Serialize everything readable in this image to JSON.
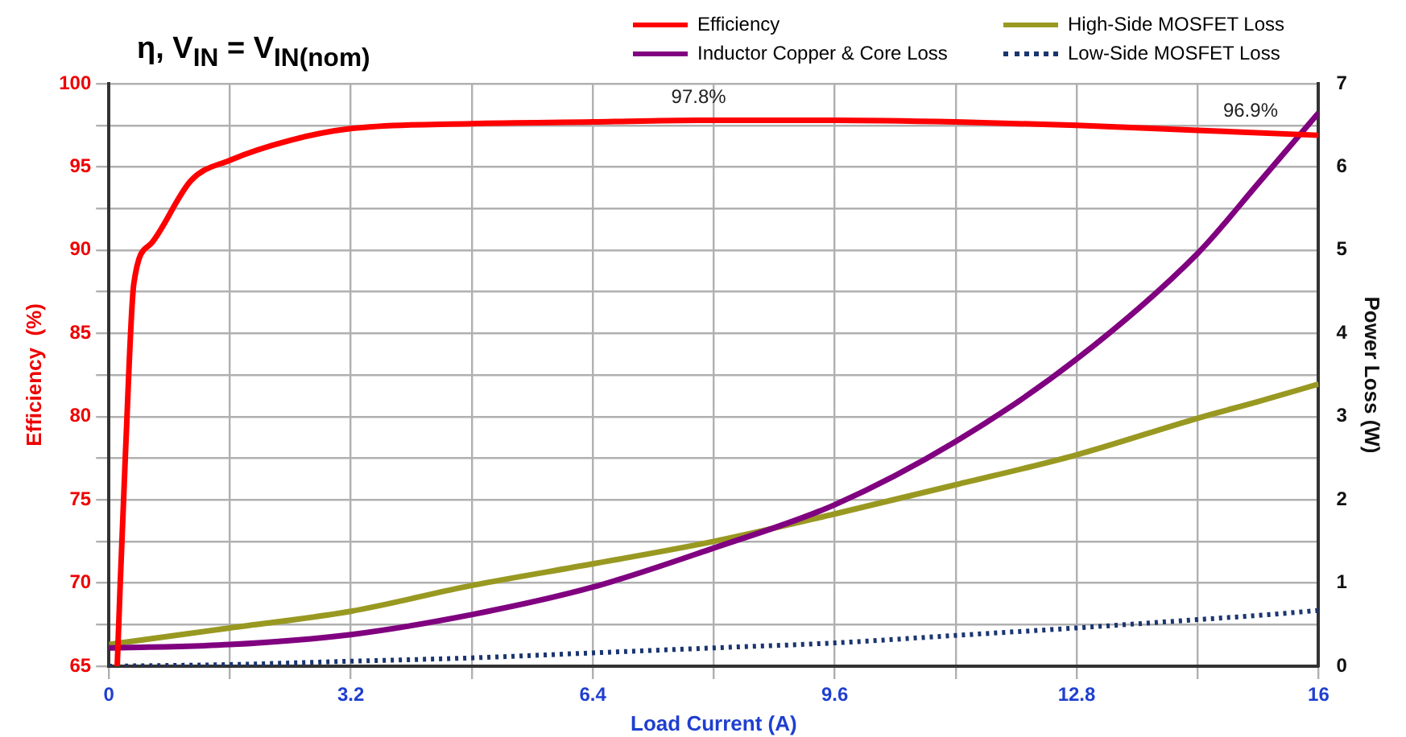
{
  "chart_data": {
    "type": "line",
    "title": "η, V$_{IN}$ = V$_{IN(nom)}$",
    "xlabel": "Load Current (A)",
    "ylabel": "Efficiency  (%)",
    "y2label": "Power Loss (W)",
    "x": [
      0,
      1.6,
      3.2,
      4.8,
      6.4,
      8,
      9.6,
      11.2,
      12.8,
      14.4,
      15.2,
      16
    ],
    "series": [
      {
        "name": "Efficiency",
        "color": "#ff0000",
        "x": [
          0.11,
          0.15,
          0.22,
          0.33,
          0.56,
          1.09,
          1.6,
          2.4,
          3.2,
          4.8,
          6.4,
          7.8,
          9.6,
          11.2,
          12.8,
          14.4,
          16
        ],
        "values": [
          65,
          70,
          77.9,
          88,
          90.4,
          94.2,
          95.4,
          96.6,
          97.3,
          97.6,
          97.7,
          97.8,
          97.8,
          97.7,
          97.5,
          97.2,
          96.9
        ]
      },
      {
        "name": "Inductor Copper & Core Loss",
        "color": "#800080",
        "axis": "y2",
        "values": [
          0.22,
          0.26,
          0.38,
          0.62,
          0.95,
          1.42,
          1.94,
          2.7,
          3.69,
          4.96,
          5.8,
          6.65
        ]
      },
      {
        "name": "High-Side MOSFET Loss",
        "color": "#999922",
        "axis": "y2",
        "values": [
          0.26,
          0.46,
          0.66,
          0.97,
          1.23,
          1.5,
          1.83,
          2.18,
          2.54,
          2.98,
          3.18,
          3.39
        ]
      },
      {
        "name": "Low-Side MOSFET Loss",
        "color": "#1a3570",
        "axis": "y2",
        "line_style": "dotted",
        "values": [
          0,
          0.02,
          0.06,
          0.1,
          0.16,
          0.22,
          0.28,
          0.37,
          0.46,
          0.56,
          0.61,
          0.67
        ]
      }
    ],
    "xlim": [
      0,
      16
    ],
    "xticks": [
      0,
      {
        "value": 1.6,
        "label": null
      },
      3.2,
      {
        "value": 4.8,
        "label": null
      },
      6.4,
      {
        "value": 8,
        "label": null
      },
      9.6,
      {
        "value": 11.2,
        "label": null
      },
      12.8,
      {
        "value": 14.4,
        "label": null
      },
      16
    ],
    "ylim": [
      65,
      100
    ],
    "yticks": [
      65,
      {
        "value": 67.5,
        "label": null
      },
      70,
      {
        "value": 72.5,
        "label": null
      },
      75,
      {
        "value": 77.5,
        "label": null
      },
      80,
      {
        "value": 82.5,
        "label": null
      },
      85,
      {
        "value": 87.5,
        "label": null
      },
      90,
      {
        "value": 92.5,
        "label": null
      },
      95,
      {
        "value": 97.5,
        "label": null
      },
      100
    ],
    "y2lim": [
      0,
      7
    ],
    "y2ticks": [
      0,
      1,
      2,
      3,
      4,
      5,
      6,
      7
    ],
    "annotations": [
      {
        "text": "97.8%",
        "x": 7.8,
        "y": 97.8
      },
      {
        "text": "96.9%",
        "x": 15.1,
        "y": 97.0
      }
    ],
    "grid": true,
    "legend": "top right",
    "marker": "none",
    "line_style": "solid"
  }
}
